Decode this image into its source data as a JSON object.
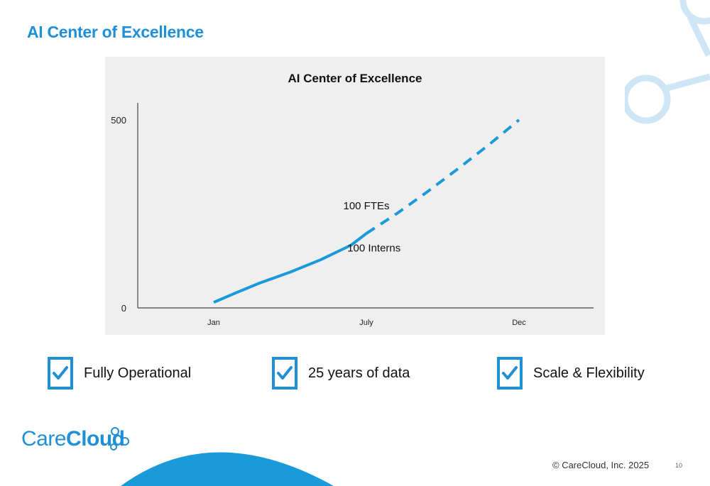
{
  "slide": {
    "title": "AI Center of Excellence",
    "footer_copyright": "© CareCloud, Inc. 2025",
    "page_number": "10",
    "logo_regular": "Care",
    "logo_bold": "Cloud"
  },
  "checklist": [
    {
      "icon": "checkbox-checked-icon",
      "label": "Fully Operational"
    },
    {
      "icon": "checkbox-checked-icon",
      "label": "25 years of data"
    },
    {
      "icon": "checkbox-checked-icon",
      "label": "Scale & Flexibility"
    }
  ],
  "colors": {
    "accent": "#1f8fd6",
    "title": "#1e90d8",
    "line": "#1a9ad9",
    "decoration": "#cfe6f7",
    "panel": "#efefef"
  },
  "chart_data": {
    "type": "line",
    "title": "AI Center of Excellence",
    "xlabel": "",
    "ylabel": "",
    "categories": [
      "Jan",
      "July",
      "Dec"
    ],
    "ylim": [
      0,
      500
    ],
    "yticks": [
      0,
      500
    ],
    "grid": false,
    "legend": "none",
    "series": [
      {
        "style": "solid",
        "x": [
          0,
          0.15,
          0.3,
          0.5,
          0.7,
          0.9,
          1.0
        ],
        "y": [
          15,
          41,
          66,
          95,
          128,
          167,
          198
        ]
      },
      {
        "style": "dashed",
        "x": [
          1.0,
          1.2,
          1.4,
          1.6,
          1.8,
          2.0
        ],
        "y": [
          198,
          251,
          309,
          370,
          433,
          500
        ]
      }
    ],
    "annotations": [
      {
        "text": "100 FTEs",
        "x": 1.0,
        "y": 262
      },
      {
        "text": "100 Interns",
        "x": 1.05,
        "y": 150
      }
    ]
  }
}
